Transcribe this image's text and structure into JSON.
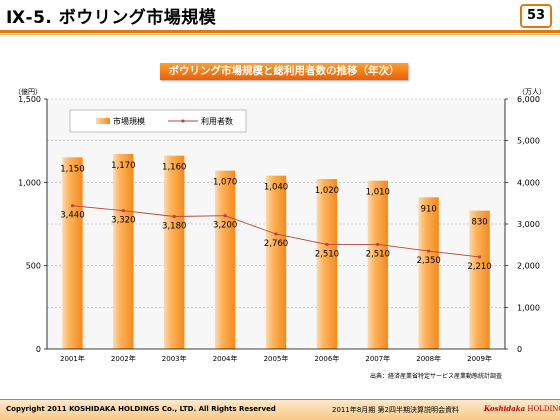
{
  "header": {
    "title": "Ⅸ-5. ボウリング市場規模",
    "page_number": "53"
  },
  "chart_data": {
    "type": "bar",
    "title": "ボウリング市場規模と総利用者数の推移（年次）",
    "categories": [
      "2001年",
      "2002年",
      "2003年",
      "2004年",
      "2005年",
      "2006年",
      "2007年",
      "2008年",
      "2009年"
    ],
    "series": [
      {
        "name": "市場規模",
        "type": "bar",
        "axis": "left",
        "values": [
          1150,
          1170,
          1160,
          1070,
          1040,
          1020,
          1010,
          910,
          830
        ],
        "labels": [
          "1,150",
          "1,170",
          "1,160",
          "1,070",
          "1,040",
          "1,020",
          "1,010",
          "910",
          "830"
        ]
      },
      {
        "name": "利用者数",
        "type": "line",
        "axis": "right",
        "values": [
          3440,
          3320,
          3180,
          3200,
          2760,
          2510,
          2510,
          2350,
          2210
        ],
        "labels": [
          "3,440",
          "3,320",
          "3,180",
          "3,200",
          "2,760",
          "2,510",
          "2,510",
          "2,350",
          "2,210"
        ]
      }
    ],
    "y_left": {
      "unit": "（億円）",
      "lim": [
        0,
        1500
      ],
      "ticks": [
        0,
        500,
        1000,
        1500
      ],
      "tick_labels": [
        "0",
        "500",
        "1,000",
        "1,500"
      ]
    },
    "y_right": {
      "unit": "（万人）",
      "lim": [
        0,
        6000
      ],
      "ticks": [
        0,
        1000,
        2000,
        3000,
        4000,
        5000,
        6000
      ],
      "tick_labels": [
        "0",
        "1,000",
        "2,000",
        "3,000",
        "4,000",
        "5,000",
        "6,000"
      ]
    },
    "grid": true,
    "legend_position": "top-left",
    "colors": {
      "bar_light": "#ffd9a8",
      "bar_dark": "#f28a1e",
      "line": "#b8433a",
      "grid": "#b0b0b0",
      "plot_bg": "#f7f7f7"
    },
    "source": "出典：経済産業省特定サービス産業動態統計調査"
  },
  "footer": {
    "copyright": "Copyright 2011 KOSHIDAKA HOLDINGS Co., LTD. All Rights Reserved",
    "meeting": "2011年8月期 第2四半期決算説明会資料",
    "logo_brand": "Koshidaka",
    "logo_suffix": "HOLDINGS"
  }
}
